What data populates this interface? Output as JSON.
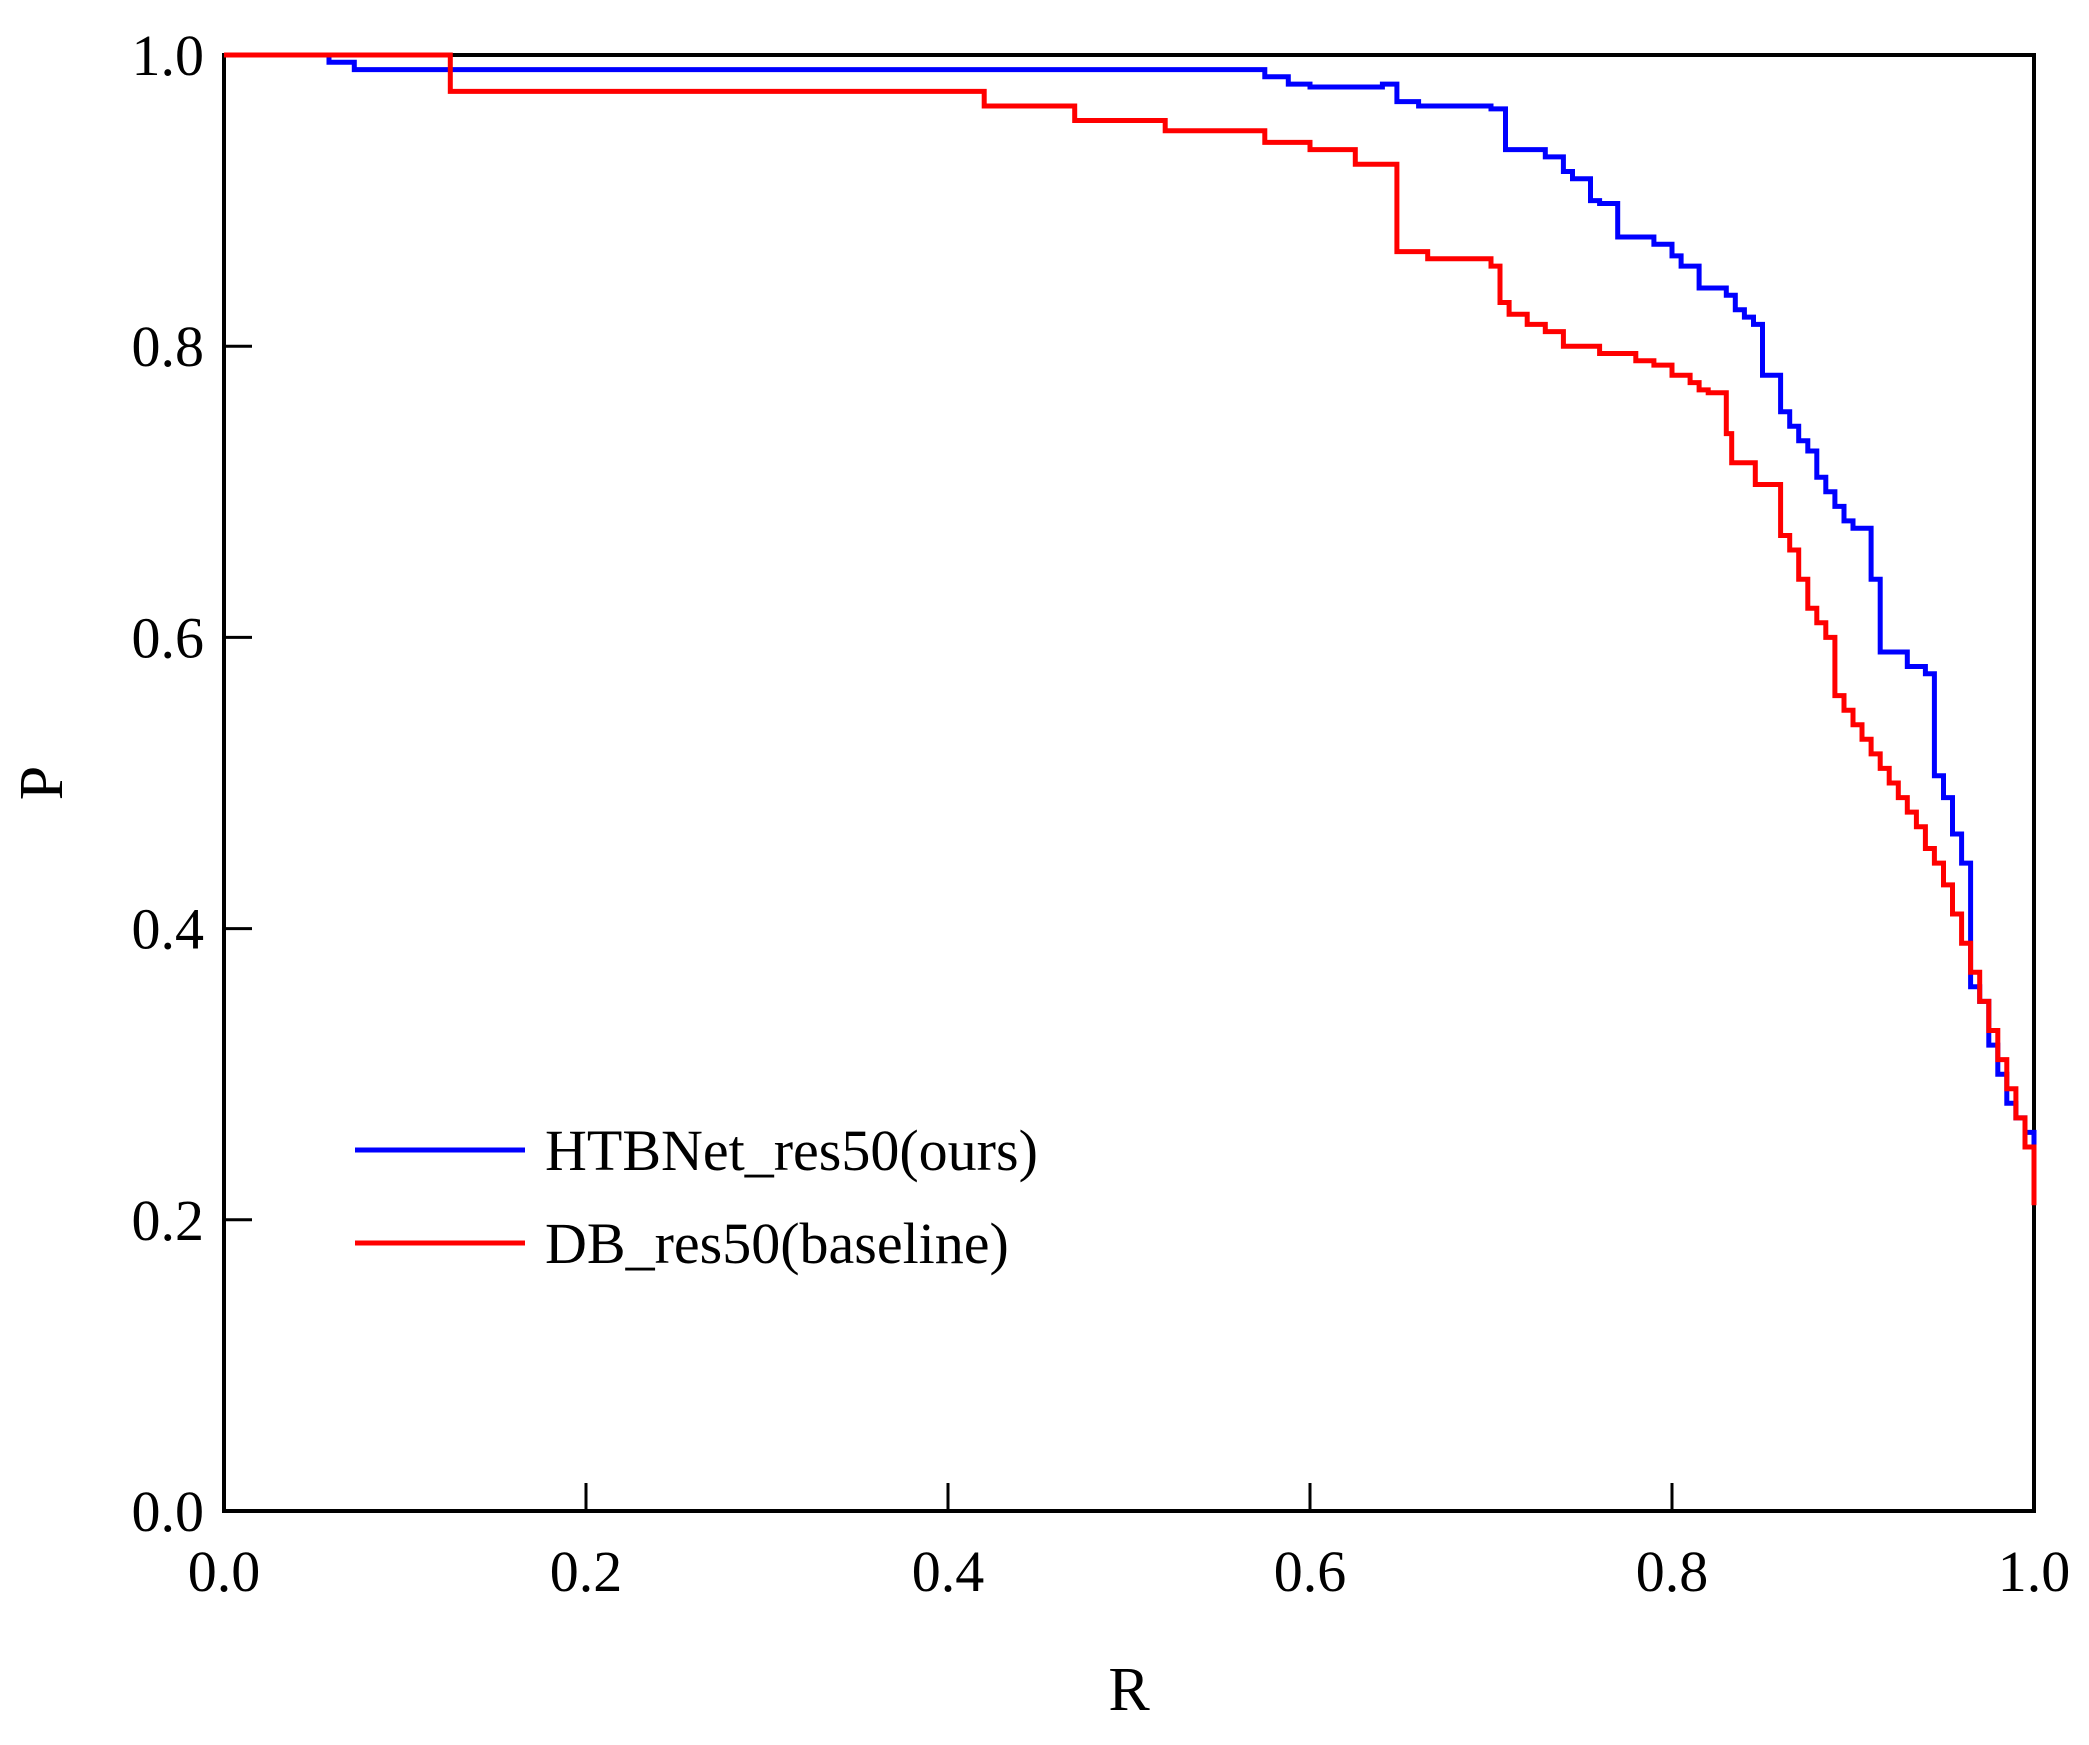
{
  "chart_data": {
    "type": "line",
    "title": "",
    "xlabel": "R",
    "ylabel": "P",
    "xlim": [
      0.0,
      1.0
    ],
    "ylim": [
      0.0,
      1.0
    ],
    "xticks": [
      0.0,
      0.2,
      0.4,
      0.6,
      0.8,
      1.0
    ],
    "yticks": [
      0.0,
      0.2,
      0.4,
      0.6,
      0.8,
      1.0
    ],
    "xtick_labels": [
      "0.0",
      "0.2",
      "0.4",
      "0.6",
      "0.8",
      "1.0"
    ],
    "ytick_labels": [
      "0.0",
      "0.2",
      "0.4",
      "0.6",
      "0.8",
      "1.0"
    ],
    "grid": false,
    "legend_position": "lower-left",
    "series": [
      {
        "name": "HTBNet_res50(ours)",
        "color": "#0000ff",
        "step": true,
        "x": [
          0.0,
          0.058,
          0.072,
          0.575,
          0.588,
          0.6,
          0.64,
          0.648,
          0.66,
          0.7,
          0.708,
          0.73,
          0.74,
          0.745,
          0.755,
          0.76,
          0.77,
          0.79,
          0.8,
          0.805,
          0.815,
          0.83,
          0.835,
          0.84,
          0.845,
          0.85,
          0.86,
          0.865,
          0.87,
          0.875,
          0.88,
          0.885,
          0.89,
          0.895,
          0.9,
          0.91,
          0.915,
          0.93,
          0.94,
          0.945,
          0.95,
          0.955,
          0.96,
          0.965,
          0.97,
          0.975,
          0.98,
          0.985,
          0.99,
          0.995,
          1.0
        ],
        "y": [
          1.0,
          0.995,
          0.99,
          0.985,
          0.98,
          0.978,
          0.98,
          0.968,
          0.965,
          0.963,
          0.935,
          0.93,
          0.92,
          0.915,
          0.9,
          0.898,
          0.875,
          0.87,
          0.862,
          0.855,
          0.84,
          0.835,
          0.825,
          0.82,
          0.815,
          0.78,
          0.755,
          0.745,
          0.735,
          0.728,
          0.71,
          0.7,
          0.69,
          0.68,
          0.675,
          0.64,
          0.59,
          0.58,
          0.575,
          0.505,
          0.49,
          0.465,
          0.445,
          0.36,
          0.35,
          0.32,
          0.3,
          0.28,
          0.27,
          0.26,
          0.23
        ]
      },
      {
        "name": "DB_res50(baseline)",
        "color": "#ff0000",
        "step": true,
        "x": [
          0.0,
          0.125,
          0.42,
          0.47,
          0.52,
          0.575,
          0.6,
          0.625,
          0.648,
          0.665,
          0.7,
          0.705,
          0.71,
          0.72,
          0.73,
          0.74,
          0.76,
          0.78,
          0.79,
          0.8,
          0.81,
          0.815,
          0.82,
          0.83,
          0.833,
          0.846,
          0.86,
          0.865,
          0.87,
          0.875,
          0.88,
          0.885,
          0.89,
          0.895,
          0.9,
          0.905,
          0.91,
          0.915,
          0.92,
          0.925,
          0.93,
          0.935,
          0.94,
          0.945,
          0.95,
          0.955,
          0.96,
          0.965,
          0.97,
          0.975,
          0.98,
          0.985,
          0.99,
          0.995,
          1.0
        ],
        "y": [
          1.0,
          0.975,
          0.965,
          0.955,
          0.948,
          0.94,
          0.935,
          0.925,
          0.865,
          0.86,
          0.855,
          0.83,
          0.822,
          0.815,
          0.81,
          0.8,
          0.795,
          0.79,
          0.787,
          0.78,
          0.775,
          0.77,
          0.768,
          0.74,
          0.72,
          0.705,
          0.67,
          0.66,
          0.64,
          0.62,
          0.61,
          0.6,
          0.56,
          0.55,
          0.54,
          0.53,
          0.52,
          0.51,
          0.5,
          0.49,
          0.48,
          0.47,
          0.455,
          0.445,
          0.43,
          0.41,
          0.39,
          0.37,
          0.35,
          0.33,
          0.31,
          0.29,
          0.27,
          0.25,
          0.21
        ]
      }
    ]
  }
}
